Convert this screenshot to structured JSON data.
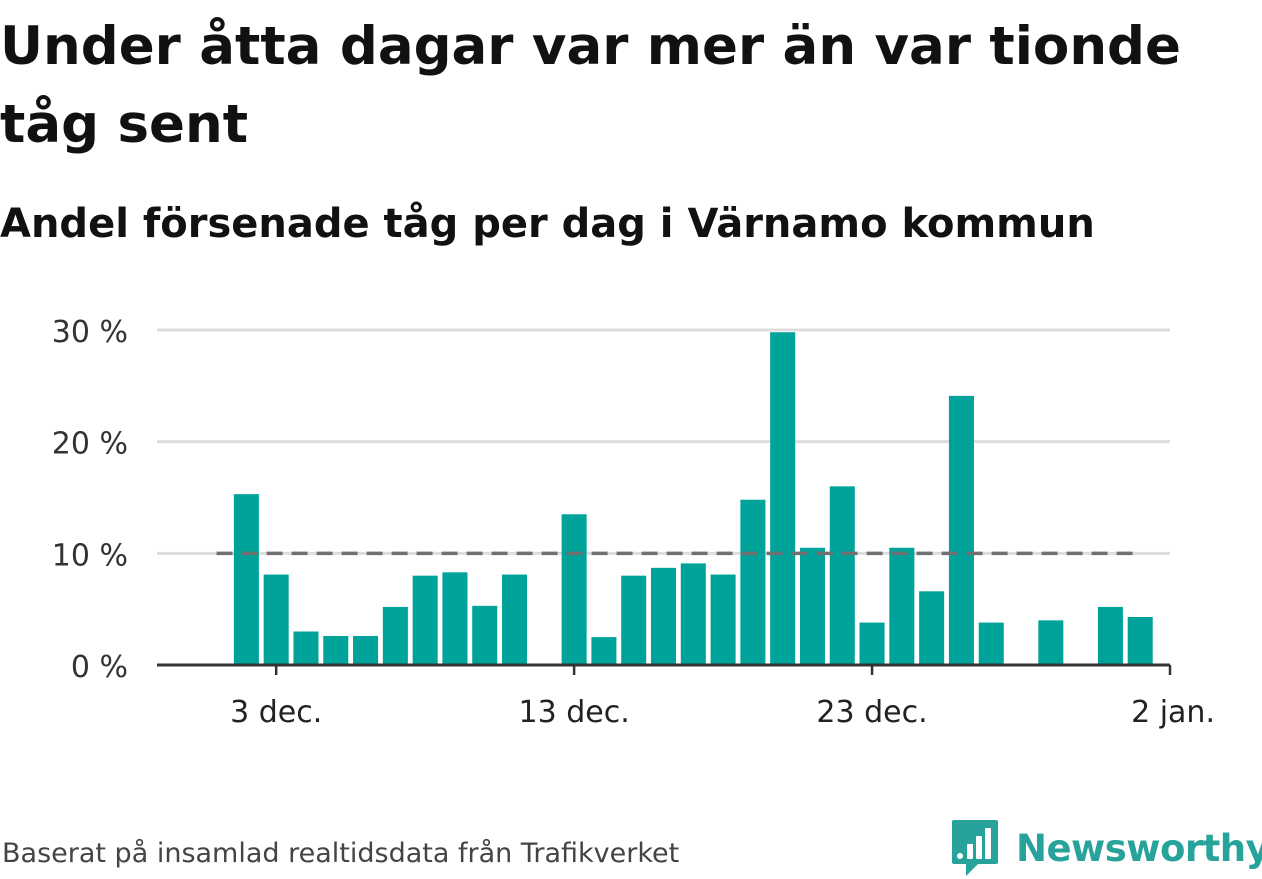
{
  "header": {
    "title": "Under åtta dagar var mer än var tionde tåg sent",
    "subtitle": "Andel försenade tåg per dag i Värnamo kommun"
  },
  "footer": {
    "source": "Baserat på insamlad realtidsdata från Trafikverket",
    "brand": "Newsworthy",
    "brand_icon": "newsworthy-logo-icon"
  },
  "colors": {
    "bar": "#00a39a",
    "reference_line": "#707070",
    "grid": "#dddddd",
    "axis": "#333333",
    "brand": "#27a39b"
  },
  "chart_data": {
    "type": "bar",
    "title": "Andel försenade tåg per dag i Värnamo kommun",
    "xlabel": "",
    "ylabel": "",
    "ylim": [
      0,
      30
    ],
    "grid": true,
    "yticks": [
      {
        "value": 0,
        "label": "0 %"
      },
      {
        "value": 10,
        "label": "10 %"
      },
      {
        "value": 20,
        "label": "20 %"
      },
      {
        "value": 30,
        "label": "30 %"
      }
    ],
    "xticks": [
      {
        "value": 3,
        "label": "3 dec."
      },
      {
        "value": 13,
        "label": "13 dec."
      },
      {
        "value": 23,
        "label": "23 dec."
      },
      {
        "value": 33,
        "label": "2 jan."
      }
    ],
    "x_range": [
      -1,
      33
    ],
    "reference_line": {
      "value": 10,
      "x_from": 1,
      "x_to": 32
    },
    "x": [
      2,
      3,
      4,
      5,
      6,
      7,
      8,
      9,
      10,
      11,
      12,
      13,
      14,
      15,
      16,
      17,
      18,
      19,
      20,
      21,
      22,
      23,
      24,
      25,
      26,
      27,
      28,
      29,
      30,
      31,
      32
    ],
    "values": [
      15.3,
      8.1,
      3.0,
      2.6,
      2.6,
      5.2,
      8.0,
      8.3,
      5.3,
      8.1,
      null,
      13.5,
      2.5,
      8.0,
      8.7,
      9.1,
      8.1,
      14.8,
      29.8,
      10.5,
      16.0,
      3.8,
      10.5,
      6.6,
      24.1,
      3.8,
      null,
      4.0,
      null,
      5.2,
      4.3
    ]
  }
}
